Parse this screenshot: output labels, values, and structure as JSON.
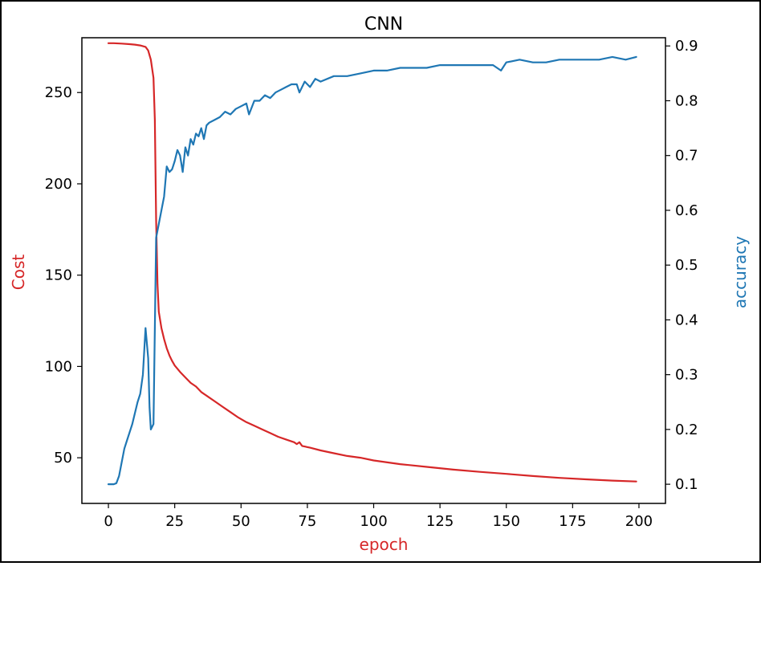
{
  "chart_data": {
    "type": "line",
    "title": "CNN",
    "xlabel": "epoch",
    "ylabel_left": "Cost",
    "ylabel_right": "accuracy",
    "xlim": [
      -10,
      210
    ],
    "ylim_left": [
      25,
      280
    ],
    "ylim_right": [
      0.065,
      0.915
    ],
    "xticks": [
      0,
      25,
      50,
      75,
      100,
      125,
      150,
      175,
      200
    ],
    "yticks_left": [
      50,
      100,
      150,
      200,
      250
    ],
    "yticks_right": [
      0.1,
      0.2,
      0.3,
      0.4,
      0.5,
      0.6,
      0.7,
      0.8,
      0.9
    ],
    "grid": false,
    "colors": {
      "cost": "#d62728",
      "accuracy": "#1f77b4",
      "axes": "#000000"
    },
    "series": [
      {
        "axis": "left",
        "color": "#d62728",
        "points": [
          [
            0,
            277
          ],
          [
            2,
            277
          ],
          [
            5,
            276.8
          ],
          [
            8,
            276.5
          ],
          [
            10,
            276.2
          ],
          [
            12,
            275.8
          ],
          [
            14,
            275
          ],
          [
            15,
            273
          ],
          [
            16,
            268
          ],
          [
            17,
            258
          ],
          [
            17.5,
            235
          ],
          [
            18,
            180
          ],
          [
            18.5,
            145
          ],
          [
            19,
            130
          ],
          [
            20,
            121
          ],
          [
            21,
            115
          ],
          [
            22,
            110
          ],
          [
            23,
            106
          ],
          [
            24,
            103
          ],
          [
            25,
            100.5
          ],
          [
            27,
            97
          ],
          [
            29,
            94
          ],
          [
            31,
            91
          ],
          [
            33,
            89
          ],
          [
            35,
            86
          ],
          [
            37,
            84
          ],
          [
            40,
            81
          ],
          [
            43,
            78
          ],
          [
            46,
            75
          ],
          [
            49,
            72
          ],
          [
            52,
            69.5
          ],
          [
            55,
            67.5
          ],
          [
            58,
            65.5
          ],
          [
            61,
            63.5
          ],
          [
            64,
            61.5
          ],
          [
            67,
            60
          ],
          [
            70,
            58.5
          ],
          [
            71,
            57.5
          ],
          [
            72,
            58.5
          ],
          [
            73,
            56.5
          ],
          [
            76,
            55.5
          ],
          [
            80,
            54
          ],
          [
            85,
            52.5
          ],
          [
            90,
            51
          ],
          [
            95,
            50
          ],
          [
            100,
            48.5
          ],
          [
            110,
            46.5
          ],
          [
            120,
            45
          ],
          [
            130,
            43.5
          ],
          [
            140,
            42.3
          ],
          [
            150,
            41.2
          ],
          [
            160,
            40
          ],
          [
            170,
            39
          ],
          [
            180,
            38.2
          ],
          [
            190,
            37.5
          ],
          [
            199,
            37
          ]
        ]
      },
      {
        "axis": "right",
        "color": "#1f77b4",
        "points": [
          [
            0,
            0.1
          ],
          [
            2,
            0.1
          ],
          [
            3,
            0.102
          ],
          [
            4,
            0.115
          ],
          [
            5,
            0.14
          ],
          [
            6,
            0.165
          ],
          [
            7,
            0.18
          ],
          [
            8,
            0.195
          ],
          [
            9,
            0.21
          ],
          [
            10,
            0.23
          ],
          [
            11,
            0.25
          ],
          [
            12,
            0.265
          ],
          [
            13,
            0.3
          ],
          [
            14,
            0.385
          ],
          [
            15,
            0.33
          ],
          [
            15.5,
            0.24
          ],
          [
            16,
            0.2
          ],
          [
            17,
            0.21
          ],
          [
            18,
            0.55
          ],
          [
            19,
            0.575
          ],
          [
            20,
            0.6
          ],
          [
            21,
            0.625
          ],
          [
            22,
            0.68
          ],
          [
            23,
            0.67
          ],
          [
            24,
            0.675
          ],
          [
            25,
            0.69
          ],
          [
            26,
            0.71
          ],
          [
            27,
            0.7
          ],
          [
            28,
            0.67
          ],
          [
            29,
            0.715
          ],
          [
            30,
            0.7
          ],
          [
            31,
            0.73
          ],
          [
            32,
            0.72
          ],
          [
            33,
            0.74
          ],
          [
            34,
            0.735
          ],
          [
            35,
            0.75
          ],
          [
            36,
            0.73
          ],
          [
            37,
            0.755
          ],
          [
            38,
            0.76
          ],
          [
            40,
            0.765
          ],
          [
            42,
            0.77
          ],
          [
            44,
            0.78
          ],
          [
            46,
            0.775
          ],
          [
            48,
            0.785
          ],
          [
            50,
            0.79
          ],
          [
            52,
            0.795
          ],
          [
            53,
            0.775
          ],
          [
            55,
            0.8
          ],
          [
            57,
            0.8
          ],
          [
            59,
            0.81
          ],
          [
            61,
            0.805
          ],
          [
            63,
            0.815
          ],
          [
            65,
            0.82
          ],
          [
            67,
            0.825
          ],
          [
            69,
            0.83
          ],
          [
            71,
            0.83
          ],
          [
            72,
            0.815
          ],
          [
            74,
            0.835
          ],
          [
            76,
            0.825
          ],
          [
            78,
            0.84
          ],
          [
            80,
            0.835
          ],
          [
            85,
            0.845
          ],
          [
            90,
            0.845
          ],
          [
            95,
            0.85
          ],
          [
            100,
            0.855
          ],
          [
            105,
            0.855
          ],
          [
            110,
            0.86
          ],
          [
            115,
            0.86
          ],
          [
            120,
            0.86
          ],
          [
            125,
            0.865
          ],
          [
            130,
            0.865
          ],
          [
            135,
            0.865
          ],
          [
            140,
            0.865
          ],
          [
            145,
            0.865
          ],
          [
            148,
            0.855
          ],
          [
            150,
            0.87
          ],
          [
            155,
            0.875
          ],
          [
            160,
            0.87
          ],
          [
            165,
            0.87
          ],
          [
            170,
            0.875
          ],
          [
            175,
            0.875
          ],
          [
            180,
            0.875
          ],
          [
            185,
            0.875
          ],
          [
            190,
            0.88
          ],
          [
            195,
            0.875
          ],
          [
            199,
            0.88
          ]
        ]
      }
    ]
  }
}
